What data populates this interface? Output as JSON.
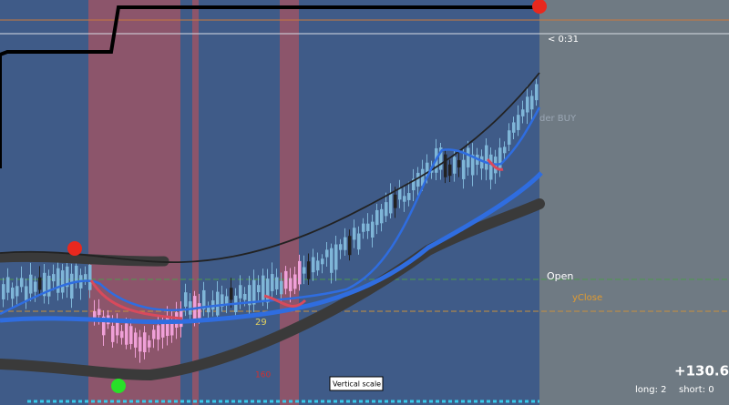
{
  "timer": "< 0:31",
  "order_label": "der BUY",
  "levels": {
    "open": "Open",
    "yclose": "yClose"
  },
  "markers": {
    "count": "29",
    "low_label": "160"
  },
  "tooltip": "Vertical scale",
  "account": {
    "profit": "+130.6",
    "long": "long: 2",
    "short": "short: 0"
  }
}
